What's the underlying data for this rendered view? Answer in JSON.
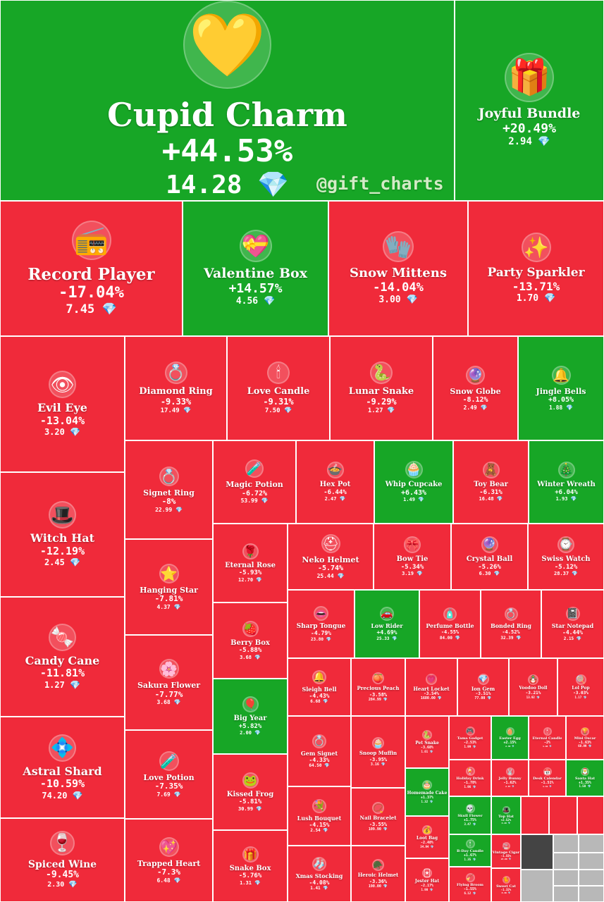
{
  "watermark": "@gift_charts",
  "colors": {
    "up": "#17a626",
    "down": "#f02a3a",
    "unlabeled": "#b8b8b8",
    "border": "#ffffff",
    "gem": "#7fd3ff"
  },
  "diamond_symbol": "💎",
  "chart_data": {
    "type": "treemap",
    "items": [
      {
        "name": "Cupid Charm",
        "change": "+44.53%",
        "price": "14.28",
        "dir": "up",
        "icon": "heart-lock-icon",
        "glyph": "💛"
      },
      {
        "name": "Joyful Bundle",
        "change": "+20.49%",
        "price": "2.94",
        "dir": "up",
        "icon": "gift-bundle-icon",
        "glyph": "🎁"
      },
      {
        "name": "Record Player",
        "change": "-17.04%",
        "price": "7.45",
        "dir": "down",
        "icon": "record-player-icon",
        "glyph": "📻"
      },
      {
        "name": "Valentine Box",
        "change": "+14.57%",
        "price": "4.56",
        "dir": "up",
        "icon": "chocolate-box-icon",
        "glyph": "💝"
      },
      {
        "name": "Snow Mittens",
        "change": "-14.04%",
        "price": "3.00",
        "dir": "down",
        "icon": "mittens-icon",
        "glyph": "🧤"
      },
      {
        "name": "Party Sparkler",
        "change": "-13.71%",
        "price": "1.70",
        "dir": "down",
        "icon": "sparkler-icon",
        "glyph": "✨"
      },
      {
        "name": "Evil Eye",
        "change": "-13.04%",
        "price": "3.20",
        "dir": "down",
        "icon": "eye-icon",
        "glyph": "👁"
      },
      {
        "name": "Diamond Ring",
        "change": "-9.33%",
        "price": "17.49",
        "dir": "down",
        "icon": "ring-box-icon",
        "glyph": "💍"
      },
      {
        "name": "Love Candle",
        "change": "-9.31%",
        "price": "7.50",
        "dir": "down",
        "icon": "candle-icon",
        "glyph": "🕯"
      },
      {
        "name": "Lunar Snake",
        "change": "-9.29%",
        "price": "1.27",
        "dir": "down",
        "icon": "snake-icon",
        "glyph": "🐍"
      },
      {
        "name": "Snow Globe",
        "change": "-8.12%",
        "price": "2.49",
        "dir": "down",
        "icon": "snow-globe-icon",
        "glyph": "🔮"
      },
      {
        "name": "Jingle Bells",
        "change": "+8.05%",
        "price": "1.88",
        "dir": "up",
        "icon": "bells-icon",
        "glyph": "🔔"
      },
      {
        "name": "Witch Hat",
        "change": "-12.19%",
        "price": "2.45",
        "dir": "down",
        "icon": "witch-hat-icon",
        "glyph": "🎩"
      },
      {
        "name": "Signet Ring",
        "change": "-8%",
        "price": "22.99",
        "dir": "down",
        "icon": "signet-ring-icon",
        "glyph": "💍"
      },
      {
        "name": "Magic Potion",
        "change": "-6.72%",
        "price": "53.99",
        "dir": "down",
        "icon": "potion-icon",
        "glyph": "🧪"
      },
      {
        "name": "Hex Pot",
        "change": "-6.44%",
        "price": "2.47",
        "dir": "down",
        "icon": "cauldron-icon",
        "glyph": "🍲"
      },
      {
        "name": "Whip Cupcake",
        "change": "+6.43%",
        "price": "1.49",
        "dir": "up",
        "icon": "cupcake-icon",
        "glyph": "🧁"
      },
      {
        "name": "Toy Bear",
        "change": "-6.31%",
        "price": "16.48",
        "dir": "down",
        "icon": "teddy-bear-icon",
        "glyph": "🧸"
      },
      {
        "name": "Winter Wreath",
        "change": "+6.04%",
        "price": "1.93",
        "dir": "up",
        "icon": "wreath-icon",
        "glyph": "🎄"
      },
      {
        "name": "Candy Cane",
        "change": "-11.81%",
        "price": "1.27",
        "dir": "down",
        "icon": "candy-cane-icon",
        "glyph": "🍬"
      },
      {
        "name": "Hanging Star",
        "change": "-7.81%",
        "price": "4.37",
        "dir": "down",
        "icon": "star-icon",
        "glyph": "⭐"
      },
      {
        "name": "Eternal Rose",
        "change": "-5.93%",
        "price": "12.70",
        "dir": "down",
        "icon": "rose-icon",
        "glyph": "🌹"
      },
      {
        "name": "Neko Helmet",
        "change": "-5.74%",
        "price": "25.44",
        "dir": "down",
        "icon": "helmet-icon",
        "glyph": "⛑"
      },
      {
        "name": "Bow Tie",
        "change": "-5.34%",
        "price": "3.19",
        "dir": "down",
        "icon": "bow-tie-icon",
        "glyph": "🎀"
      },
      {
        "name": "Crystal Ball",
        "change": "-5.26%",
        "price": "6.30",
        "dir": "down",
        "icon": "crystal-ball-icon",
        "glyph": "🔮"
      },
      {
        "name": "Swiss Watch",
        "change": "-5.12%",
        "price": "28.37",
        "dir": "down",
        "icon": "watch-icon",
        "glyph": "⌚"
      },
      {
        "name": "Astral Shard",
        "change": "-10.59%",
        "price": "74.20",
        "dir": "down",
        "icon": "crystal-icon",
        "glyph": "💠"
      },
      {
        "name": "Sakura Flower",
        "change": "-7.77%",
        "price": "3.68",
        "dir": "down",
        "icon": "flower-icon",
        "glyph": "🌸"
      },
      {
        "name": "Berry Box",
        "change": "-5.88%",
        "price": "3.68",
        "dir": "down",
        "icon": "berry-box-icon",
        "glyph": "🍓"
      },
      {
        "name": "Sharp Tongue",
        "change": "-4.79%",
        "price": "23.80",
        "dir": "down",
        "icon": "mouth-icon",
        "glyph": "👄"
      },
      {
        "name": "Low Rider",
        "change": "+4.69%",
        "price": "25.33",
        "dir": "up",
        "icon": "car-icon",
        "glyph": "🚗"
      },
      {
        "name": "Perfume Bottle",
        "change": "-4.55%",
        "price": "84.00",
        "dir": "down",
        "icon": "perfume-icon",
        "glyph": "🧴"
      },
      {
        "name": "Bonded Ring",
        "change": "-4.52%",
        "price": "32.39",
        "dir": "down",
        "icon": "rings-icon",
        "glyph": "💍"
      },
      {
        "name": "Star Notepad",
        "change": "-4.44%",
        "price": "2.15",
        "dir": "down",
        "icon": "notepad-icon",
        "glyph": "📓"
      },
      {
        "name": "Big Year",
        "change": "+5.82%",
        "price": "2.00",
        "dir": "up",
        "icon": "balloons-icon",
        "glyph": "🎈"
      },
      {
        "name": "Sleigh Bell",
        "change": "-4.43%",
        "price": "6.68",
        "dir": "down",
        "icon": "sleigh-bell-icon",
        "glyph": "🔔"
      },
      {
        "name": "Precious Peach",
        "change": "-3.58%",
        "price": "284.99",
        "dir": "down",
        "icon": "peach-icon",
        "glyph": "🍑"
      },
      {
        "name": "Heart Locket",
        "change": "-3.54%",
        "price": "1680.00",
        "dir": "down",
        "icon": "locket-icon",
        "glyph": "💗"
      },
      {
        "name": "Ion Gem",
        "change": "-3.51%",
        "price": "77.00",
        "dir": "down",
        "icon": "gem-icon",
        "glyph": "💎"
      },
      {
        "name": "Voodoo Doll",
        "change": "-3.21%",
        "price": "13.92",
        "dir": "down",
        "icon": "voodoo-doll-icon",
        "glyph": "🪆"
      },
      {
        "name": "Lol Pop",
        "change": "-3.03%",
        "price": "1.17",
        "dir": "down",
        "icon": "lollipop-icon",
        "glyph": "🍭"
      },
      {
        "name": "Love Potion",
        "change": "-7.35%",
        "price": "7.69",
        "dir": "down",
        "icon": "love-potion-icon",
        "glyph": "🧪"
      },
      {
        "name": "Kissed Frog",
        "change": "-5.81%",
        "price": "30.99",
        "dir": "down",
        "icon": "frog-icon",
        "glyph": "🐸"
      },
      {
        "name": "Gem Signet",
        "change": "-4.33%",
        "price": "64.50",
        "dir": "down",
        "icon": "gem-signet-icon",
        "glyph": "💍"
      },
      {
        "name": "Snoop Muffin",
        "change": "-3.95%",
        "price": "3.16",
        "dir": "down",
        "icon": "muffin-icon",
        "glyph": "🧁"
      },
      {
        "name": "Pet Snake",
        "change": "-3.68%",
        "price": "1.61",
        "dir": "down",
        "icon": "snake-icon",
        "glyph": "🐍"
      },
      {
        "name": "Tama Gadget",
        "change": "-2.53%",
        "price": "1.99",
        "dir": "down",
        "icon": "gadget-icon",
        "glyph": "🎮"
      },
      {
        "name": "Easter Egg",
        "change": "+2.15%",
        "price": "2.38",
        "dir": "up",
        "icon": "egg-icon",
        "glyph": "🥚"
      },
      {
        "name": "Eternal Candle",
        "change": "-2%",
        "price": "1.98",
        "dir": "down",
        "icon": "candle-icon",
        "glyph": "🕯"
      },
      {
        "name": "Mini Oscar",
        "change": "-1.63%",
        "price": "68.99",
        "dir": "down",
        "icon": "trophy-icon",
        "glyph": "🏆"
      },
      {
        "name": "Homemade Cake",
        "change": "+1.37%",
        "price": "1.32",
        "dir": "up",
        "icon": "cake-icon",
        "glyph": "🎂"
      },
      {
        "name": "Holiday Drink",
        "change": "-1.78%",
        "price": "1.96",
        "dir": "down",
        "icon": "drink-icon",
        "glyph": "🍹"
      },
      {
        "name": "Jelly Bunny",
        "change": "-1.62%",
        "price": "2.87",
        "dir": "down",
        "icon": "bunny-icon",
        "glyph": "🐰"
      },
      {
        "name": "Desk Calendar",
        "change": "-1.51%",
        "price": "1.41",
        "dir": "down",
        "icon": "calendar-icon",
        "glyph": "📅"
      },
      {
        "name": "Santa Hat",
        "change": "+1.35%",
        "price": "1.50",
        "dir": "up",
        "icon": "santa-hat-icon",
        "glyph": "🎅"
      },
      {
        "name": "Trapped Heart",
        "change": "-7.3%",
        "price": "6.48",
        "dir": "down",
        "icon": "trapped-heart-icon",
        "glyph": "💖"
      },
      {
        "name": "Snake Box",
        "change": "-5.76%",
        "price": "1.31",
        "dir": "down",
        "icon": "snake-box-icon",
        "glyph": "🎁"
      },
      {
        "name": "Spiced Wine",
        "change": "-9.45%",
        "price": "2.30",
        "dir": "down",
        "icon": "wine-icon",
        "glyph": "🍷"
      },
      {
        "name": "Lush Bouquet",
        "change": "-4.15%",
        "price": "2.54",
        "dir": "down",
        "icon": "bouquet-icon",
        "glyph": "💐"
      },
      {
        "name": "Xmas Stocking",
        "change": "-4.08%",
        "price": "1.41",
        "dir": "down",
        "icon": "stocking-icon",
        "glyph": "🧦"
      },
      {
        "name": "Nail Bracelet",
        "change": "-3.55%",
        "price": "109.90",
        "dir": "down",
        "icon": "bracelet-icon",
        "glyph": "📿"
      },
      {
        "name": "Heroic Helmet",
        "change": "-3.36%",
        "price": "190.00",
        "dir": "down",
        "icon": "helmet-icon",
        "glyph": "🪖"
      },
      {
        "name": "Loot Bag",
        "change": "-2.48%",
        "price": "34.94",
        "dir": "down",
        "icon": "bag-icon",
        "glyph": "💰"
      },
      {
        "name": "Jester Hat",
        "change": "-2.17%",
        "price": "1.90",
        "dir": "down",
        "icon": "jester-hat-icon",
        "glyph": "🃏"
      },
      {
        "name": "Skull Flower",
        "change": "+1.75%",
        "price": "3.47",
        "dir": "up",
        "icon": "skull-flower-icon",
        "glyph": "💀"
      },
      {
        "name": "Top Hat",
        "change": "+2.52%",
        "price": "6.20",
        "dir": "up",
        "icon": "top-hat-icon",
        "glyph": "🎩"
      },
      {
        "name": "B-Day Candle",
        "change": "+1.67%",
        "price": "1.35",
        "dir": "up",
        "icon": "candle-icon",
        "glyph": "🕯"
      },
      {
        "name": "Vintage Cigar",
        "change": "-1.55%",
        "price": "24.00",
        "dir": "down",
        "icon": "cigar-icon",
        "glyph": "🚬"
      },
      {
        "name": "Flying Broom",
        "change": "-1.55%",
        "price": "6.12",
        "dir": "down",
        "icon": "broom-icon",
        "glyph": "🧹"
      },
      {
        "name": "Sweet Cat",
        "change": "-1.32%",
        "price": "8.30",
        "dir": "down",
        "icon": "cat-icon",
        "glyph": "🐈"
      }
    ]
  }
}
